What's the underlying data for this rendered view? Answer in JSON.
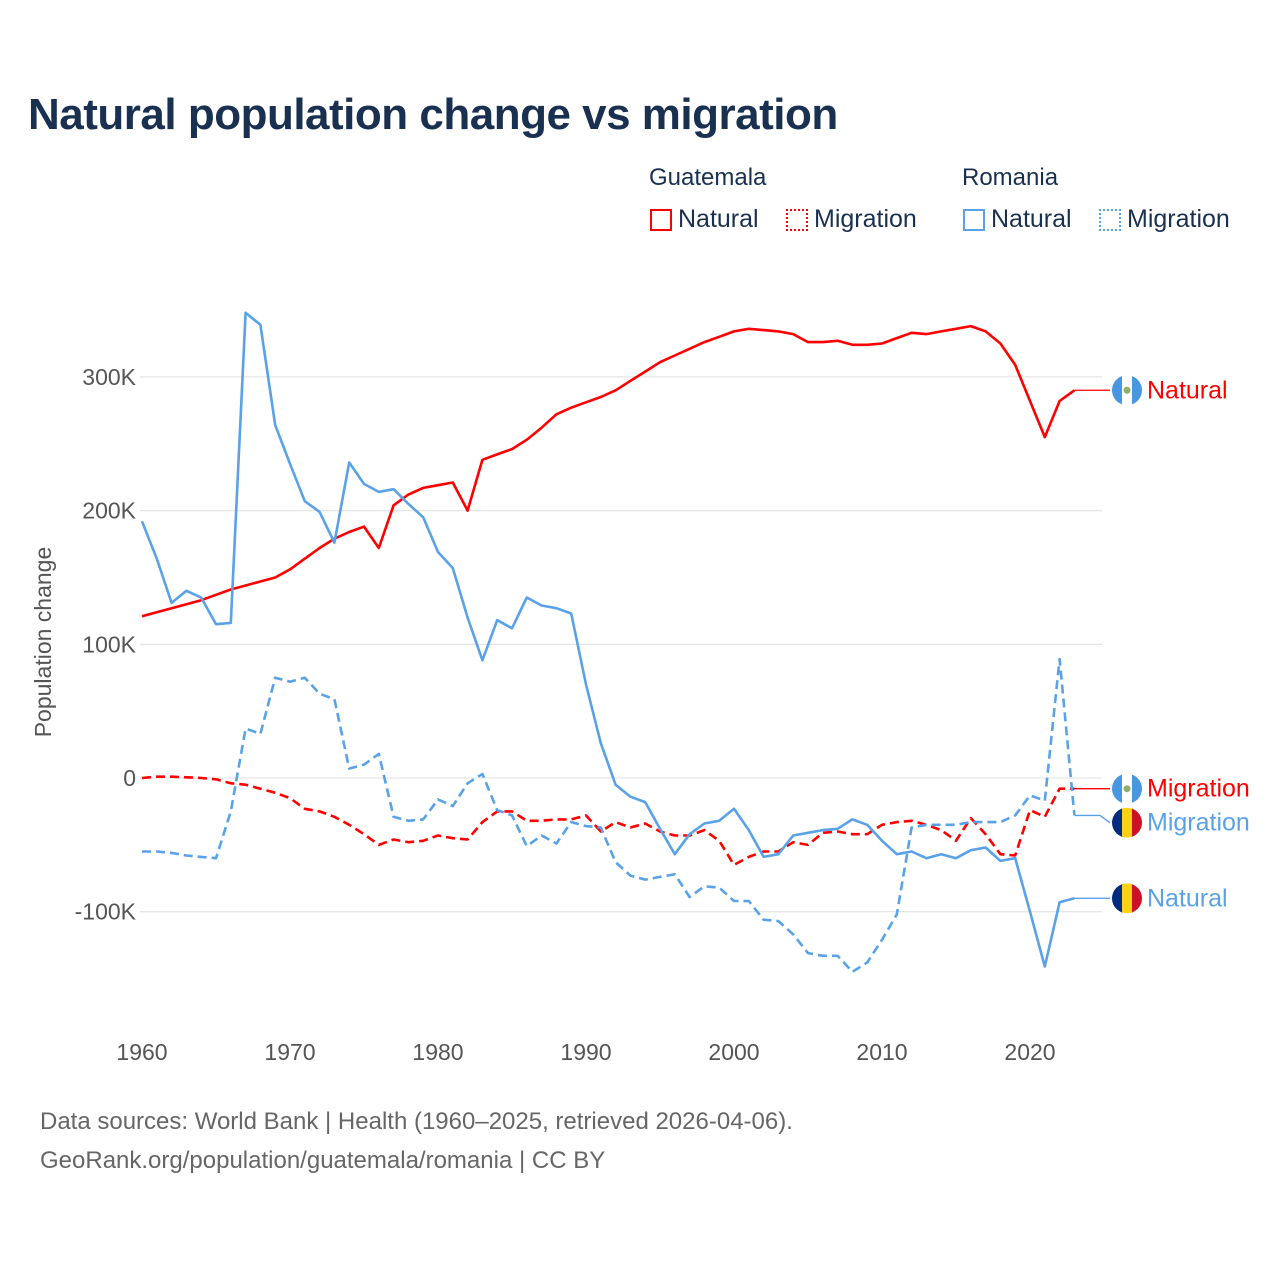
{
  "title": "Natural population change vs migration",
  "legend": {
    "groups": [
      {
        "country": "Guatemala",
        "items": [
          "Natural",
          "Migration"
        ],
        "color": "#ff0000"
      },
      {
        "country": "Romania",
        "items": [
          "Natural",
          "Migration"
        ],
        "color": "#5aa2e8"
      }
    ]
  },
  "footer": {
    "line1": "Data sources: World Bank | Health (1960–2025, retrieved 2026-04-06).",
    "line2": "GeoRank.org/population/guatemala/romania | CC BY"
  },
  "chart_data": {
    "type": "line",
    "title": "Natural population change vs migration",
    "xlabel": "",
    "ylabel": "Population change",
    "xlim": [
      1960,
      2025
    ],
    "ylim": [
      -160000,
      360000
    ],
    "x_ticks": [
      1960,
      1970,
      1980,
      1990,
      2000,
      2010,
      2020
    ],
    "y_ticks": [
      {
        "v": 300000,
        "label": "300K"
      },
      {
        "v": 200000,
        "label": "200K"
      },
      {
        "v": 100000,
        "label": "100K"
      },
      {
        "v": 0,
        "label": "0"
      },
      {
        "v": -100000,
        "label": "-100K"
      }
    ],
    "grid": true,
    "x_start": 1960,
    "units": "thousands",
    "series": [
      {
        "name": "Guatemala Natural",
        "end_label": "Natural",
        "flag": "guatemala",
        "color": "#ff0000",
        "dash": false,
        "values": [
          121,
          124,
          127,
          130,
          133,
          137,
          141,
          144,
          147,
          150,
          156,
          164,
          172,
          179,
          184,
          188,
          172,
          204,
          212,
          217,
          219,
          221,
          200,
          238,
          242,
          246,
          253,
          262,
          272,
          277,
          281,
          285,
          290,
          297,
          304,
          311,
          316,
          321,
          326,
          330,
          334,
          336,
          335,
          334,
          332,
          326,
          326,
          327,
          324,
          324,
          325,
          329,
          333,
          332,
          334,
          336,
          338,
          334,
          325,
          309,
          282,
          255,
          282,
          290
        ]
      },
      {
        "name": "Guatemala Migration",
        "end_label": "Migration",
        "flag": "guatemala",
        "color": "#ff0000",
        "dash": true,
        "values": [
          0,
          1,
          1,
          0.5,
          0,
          -1,
          -4,
          -5,
          -8,
          -11,
          -15,
          -23,
          -25,
          -29,
          -35,
          -42,
          -50,
          -46,
          -48,
          -47,
          -43,
          -45,
          -46,
          -33,
          -25,
          -25,
          -32,
          -32,
          -31,
          -31,
          -28,
          -40,
          -33,
          -37,
          -34,
          -40,
          -43,
          -43,
          -39,
          -47,
          -65,
          -59,
          -55,
          -55,
          -48,
          -50,
          -41,
          -40,
          -42,
          -42,
          -35,
          -33,
          -32,
          -35,
          -39,
          -47,
          -30,
          -42,
          -57,
          -58,
          -24,
          -29,
          -8,
          -8
        ]
      },
      {
        "name": "Romania Natural",
        "end_label": "Natural",
        "flag": "romania",
        "color": "#5aa2e8",
        "dash": false,
        "values": [
          192,
          164,
          131,
          140,
          135,
          115,
          116,
          348,
          339,
          264,
          235,
          207,
          199,
          176,
          236,
          220,
          214,
          216,
          205,
          195,
          169,
          157,
          120,
          88,
          118,
          112,
          135,
          129,
          127,
          123,
          70,
          26,
          -5,
          -14,
          -18,
          -38,
          -57,
          -42,
          -34,
          -32,
          -23,
          -39,
          -59,
          -57,
          -43,
          -41,
          -39,
          -38,
          -31,
          -35,
          -47,
          -57,
          -55,
          -60,
          -57,
          -60,
          -54,
          -52,
          -62,
          -60,
          -100,
          -141,
          -93,
          -90
        ]
      },
      {
        "name": "Romania Migration",
        "end_label": "Migration",
        "flag": "romania",
        "color": "#5aa2e8",
        "dash": true,
        "values": [
          -55,
          -55,
          -56,
          -58,
          -59,
          -60,
          -25,
          37,
          33,
          75,
          72,
          75,
          63,
          59,
          7,
          10,
          18,
          -29,
          -32,
          -31,
          -16,
          -21,
          -4,
          3,
          -24,
          -28,
          -51,
          -43,
          -49,
          -33,
          -36,
          -37,
          -63,
          -73,
          -76,
          -74,
          -72,
          -89,
          -81,
          -82,
          -92,
          -92,
          -106,
          -107,
          -117,
          -131,
          -133,
          -133,
          -145,
          -138,
          -121,
          -102,
          -37,
          -35,
          -35,
          -35,
          -33,
          -33,
          -33,
          -28,
          -13,
          -17,
          89,
          -28
        ]
      }
    ]
  }
}
